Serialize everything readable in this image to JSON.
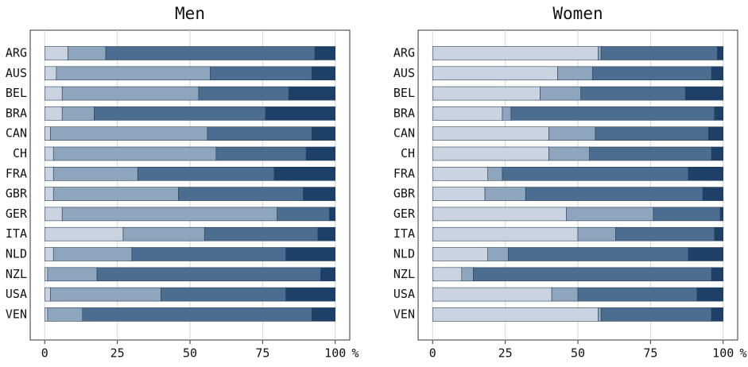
{
  "chart_data": [
    {
      "type": "bar",
      "orientation": "horizontal",
      "stacked": true,
      "title": "Men",
      "categories": [
        "ARG",
        "AUS",
        "BEL",
        "BRA",
        "CAN",
        "CH",
        "FRA",
        "GBR",
        "GER",
        "ITA",
        "NLD",
        "NZL",
        "USA",
        "VEN"
      ],
      "series": [
        {
          "color": "#c9d4e0",
          "values": [
            8,
            4,
            6,
            6,
            2,
            3,
            3,
            3,
            6,
            27,
            3,
            1,
            2,
            1
          ]
        },
        {
          "color": "#8ea5be",
          "values": [
            13,
            53,
            47,
            11,
            54,
            56,
            29,
            43,
            74,
            28,
            27,
            17,
            38,
            12
          ]
        },
        {
          "color": "#4b6d90",
          "values": [
            72,
            35,
            31,
            59,
            36,
            31,
            47,
            43,
            18,
            39,
            53,
            77,
            43,
            79
          ]
        },
        {
          "color": "#1c4068",
          "values": [
            7,
            8,
            16,
            24,
            8,
            10,
            21,
            11,
            2,
            6,
            17,
            5,
            17,
            8
          ]
        }
      ],
      "xlim": [
        -5,
        105
      ],
      "xticks": [
        0,
        25,
        50,
        75,
        100
      ],
      "xlabel": "%",
      "grid": true
    },
    {
      "type": "bar",
      "orientation": "horizontal",
      "stacked": true,
      "title": "Women",
      "categories": [
        "ARG",
        "AUS",
        "BEL",
        "BRA",
        "CAN",
        "CH",
        "FRA",
        "GBR",
        "GER",
        "ITA",
        "NLD",
        "NZL",
        "USA",
        "VEN"
      ],
      "series": [
        {
          "color": "#c9d4e0",
          "values": [
            57,
            43,
            37,
            24,
            40,
            40,
            19,
            18,
            46,
            50,
            19,
            10,
            41,
            57
          ]
        },
        {
          "color": "#8ea5be",
          "values": [
            1,
            12,
            14,
            3,
            16,
            14,
            5,
            14,
            30,
            13,
            7,
            4,
            9,
            1
          ]
        },
        {
          "color": "#4b6d90",
          "values": [
            40,
            41,
            36,
            70,
            39,
            42,
            64,
            61,
            23,
            34,
            62,
            82,
            41,
            38
          ]
        },
        {
          "color": "#1c4068",
          "values": [
            2,
            4,
            13,
            3,
            5,
            4,
            12,
            7,
            1,
            3,
            12,
            4,
            9,
            4
          ]
        }
      ],
      "xlim": [
        -5,
        105
      ],
      "xticks": [
        0,
        25,
        50,
        75,
        100
      ],
      "xlabel": "%",
      "grid": true
    }
  ]
}
